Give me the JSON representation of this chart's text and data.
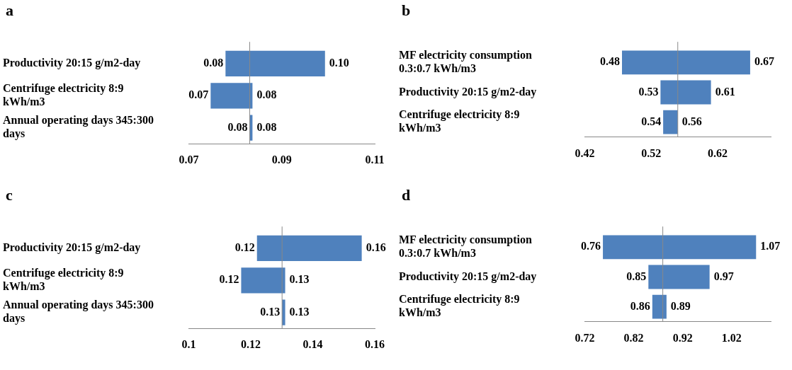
{
  "chart_data": [
    {
      "type": "bar",
      "title": "a",
      "orientation": "horizontal",
      "categories": [
        "Productivity 20:15 g/m2-day",
        "Centrifuge electricity 8:9 kWh/m3",
        "Annual operating days 345:300 days"
      ],
      "base": [
        0.0779,
        0.0747,
        0.0831
      ],
      "values": [
        0.0214,
        0.009,
        0.0006
      ],
      "color": "#4f81bd",
      "xlim": [
        0.07,
        0.11
      ],
      "xticks": [
        0.07,
        0.09,
        0.11
      ],
      "legend": false,
      "ref_lines": [
        {
          "axis": "x",
          "value": 0.0831,
          "color": "#888888"
        }
      ],
      "annotations": [
        {
          "text": "0.08",
          "x": 0.0779,
          "y": "Productivity 20:15 g/m2-day"
        },
        {
          "text": "0.10",
          "x": 0.0993,
          "y": "Productivity 20:15 g/m2-day"
        },
        {
          "text": "0.07",
          "x": 0.0747,
          "y": "Centrifuge electricity 8:9 kWh/m3"
        },
        {
          "text": "0.08",
          "x": 0.0837,
          "y": "Centrifuge electricity 8:9 kWh/m3"
        },
        {
          "text": "0.08",
          "x": 0.0831,
          "y": "Annual operating days 345:300 days"
        },
        {
          "text": "0.08",
          "x": 0.0837,
          "y": "Annual operating days 345:300 days"
        }
      ]
    },
    {
      "type": "bar",
      "title": "b",
      "orientation": "horizontal",
      "categories": [
        "MF electricity consumption 0.3:0.7 kWh/m3",
        "Productivity 20:15 g/m2-day",
        "Centrifuge electricity 8:9 kWh/m3"
      ],
      "base": [
        0.476,
        0.534,
        0.538
      ],
      "values": [
        0.193,
        0.076,
        0.022
      ],
      "color": "#4f81bd",
      "xlim": [
        0.42,
        0.7
      ],
      "xticks": [
        0.42,
        0.52,
        0.62
      ],
      "legend": false,
      "ref_lines": [
        {
          "axis": "x",
          "value": 0.56,
          "color": "#888888"
        }
      ],
      "annotations": [
        {
          "text": "0.48",
          "x": 0.476,
          "y": "MF electricity consumption 0.3:0.7 kWh/m3"
        },
        {
          "text": "0.67",
          "x": 0.669,
          "y": "MF electricity consumption 0.3:0.7 kWh/m3"
        },
        {
          "text": "0.53",
          "x": 0.534,
          "y": "Productivity 20:15 g/m2-day"
        },
        {
          "text": "0.61",
          "x": 0.61,
          "y": "Productivity 20:15 g/m2-day"
        },
        {
          "text": "0.54",
          "x": 0.538,
          "y": "Centrifuge electricity 8:9 kWh/m3"
        },
        {
          "text": "0.56",
          "x": 0.56,
          "y": "Centrifuge electricity 8:9 kWh/m3"
        }
      ]
    },
    {
      "type": "bar",
      "title": "c",
      "orientation": "horizontal",
      "categories": [
        "Productivity 20:15 g/m2-day",
        "Centrifuge electricity 8:9 kWh/m3",
        "Annual operating days 345:300 days"
      ],
      "base": [
        0.122,
        0.1169,
        0.1301
      ],
      "values": [
        0.0338,
        0.0142,
        0.001
      ],
      "color": "#4f81bd",
      "xlim": [
        0.1,
        0.16
      ],
      "xticks": [
        0.1,
        0.12,
        0.14,
        0.16
      ],
      "legend": false,
      "ref_lines": [
        {
          "axis": "x",
          "value": 0.1301,
          "color": "#888888"
        }
      ],
      "annotations": [
        {
          "text": "0.12",
          "x": 0.122,
          "y": "Productivity 20:15 g/m2-day"
        },
        {
          "text": "0.16",
          "x": 0.1558,
          "y": "Productivity 20:15 g/m2-day"
        },
        {
          "text": "0.12",
          "x": 0.1169,
          "y": "Centrifuge electricity 8:9 kWh/m3"
        },
        {
          "text": "0.13",
          "x": 0.1311,
          "y": "Centrifuge electricity 8:9 kWh/m3"
        },
        {
          "text": "0.13",
          "x": 0.1301,
          "y": "Annual operating days 345:300 days"
        },
        {
          "text": "0.13",
          "x": 0.1311,
          "y": "Annual operating days 345:300 days"
        }
      ]
    },
    {
      "type": "bar",
      "title": "d",
      "orientation": "horizontal",
      "categories": [
        "MF electricity consumption 0.3:0.7 kWh/m3",
        "Productivity 20:15 g/m2-day",
        "Centrifuge electricity 8:9 kWh/m3"
      ],
      "base": [
        0.757,
        0.85,
        0.858
      ],
      "values": [
        0.313,
        0.125,
        0.029
      ],
      "color": "#4f81bd",
      "xlim": [
        0.72,
        1.1
      ],
      "xticks": [
        0.72,
        0.82,
        0.92,
        1.02
      ],
      "legend": false,
      "ref_lines": [
        {
          "axis": "x",
          "value": 0.8794,
          "color": "#888888"
        }
      ],
      "annotations": [
        {
          "text": "0.76",
          "x": 0.757,
          "y": "MF electricity consumption 0.3:0.7 kWh/m3"
        },
        {
          "text": "1.07",
          "x": 1.07,
          "y": "MF electricity consumption 0.3:0.7 kWh/m3"
        },
        {
          "text": "0.85",
          "x": 0.85,
          "y": "Productivity 20:15 g/m2-day"
        },
        {
          "text": "0.97",
          "x": 0.975,
          "y": "Productivity 20:15 g/m2-day"
        },
        {
          "text": "0.86",
          "x": 0.858,
          "y": "Centrifuge electricity 8:9 kWh/m3"
        },
        {
          "text": "0.89",
          "x": 0.887,
          "y": "Centrifuge electricity 8:9 kWh/m3"
        }
      ]
    }
  ]
}
